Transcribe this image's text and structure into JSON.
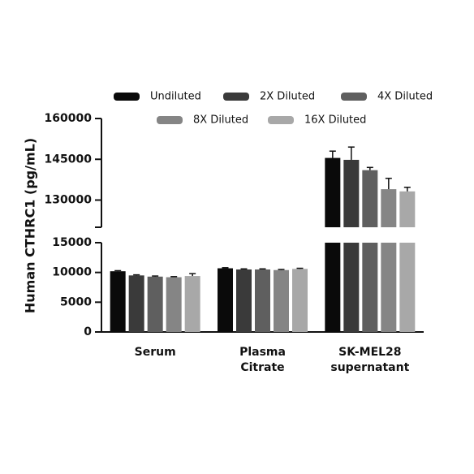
{
  "chart_data": {
    "type": "bar",
    "y_label": "Human CTHRC1 (pg/mL)",
    "categories": [
      [
        "Serum"
      ],
      [
        "Plasma",
        "Citrate"
      ],
      [
        "SK-MEL28",
        "supernatant"
      ]
    ],
    "axis_segments": [
      {
        "ylim": [
          0,
          15000
        ],
        "yticks": [
          0,
          5000,
          10000,
          15000
        ]
      },
      {
        "ylim": [
          120000,
          160000
        ],
        "yticks": [
          130000,
          145000,
          160000
        ]
      }
    ],
    "series": [
      {
        "name": "Undiluted",
        "color": "#0a0a0a",
        "values": [
          10200,
          10700,
          145500
        ],
        "errors": [
          100,
          100,
          2500
        ]
      },
      {
        "name": "2X Diluted",
        "color": "#3a3a3a",
        "values": [
          9500,
          10500,
          144800
        ],
        "errors": [
          100,
          100,
          4700
        ]
      },
      {
        "name": "4X Diluted",
        "color": "#5f5f5f",
        "values": [
          9300,
          10500,
          141000
        ],
        "errors": [
          100,
          100,
          1000
        ]
      },
      {
        "name": "8X Diluted",
        "color": "#858585",
        "values": [
          9200,
          10400,
          134000
        ],
        "errors": [
          100,
          100,
          4000
        ]
      },
      {
        "name": "16X Diluted",
        "color": "#a8a8a8",
        "values": [
          9400,
          10600,
          133200
        ],
        "errors": [
          400,
          100,
          1500
        ]
      }
    ]
  }
}
